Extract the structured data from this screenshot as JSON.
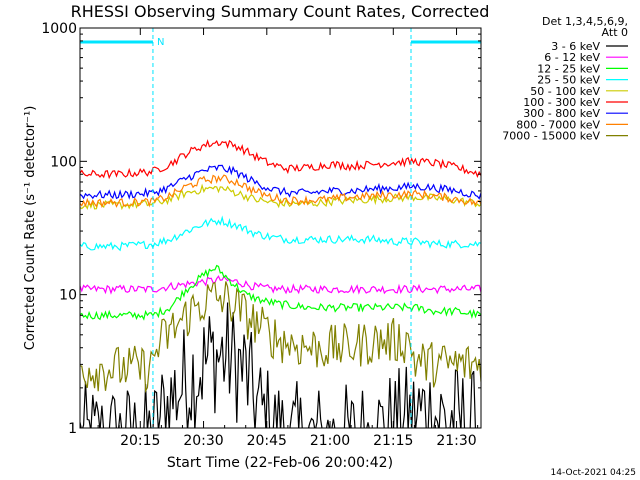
{
  "chart_data": {
    "type": "line",
    "title": "RHESSI Observing Summary Count Rates, Corrected",
    "xlabel": "Start Time (22-Feb-06 20:00:42)",
    "ylabel": "Corrected Count Rate (s⁻¹ detector⁻¹)",
    "y_scale": "log",
    "xlim_minutes_after_20_00": [
      0.7,
      95.8
    ],
    "ylim": [
      1,
      1000
    ],
    "x_ticks": [
      "20:15",
      "20:30",
      "20:45",
      "21:00",
      "21:15",
      "21:30"
    ],
    "x_tick_minutes": [
      15,
      30,
      45,
      60,
      75,
      90
    ],
    "y_ticks": [
      "1",
      "10",
      "100",
      "1000"
    ],
    "y_tick_values": [
      1,
      10,
      100,
      1000
    ],
    "legend_header": [
      "Det 1,3,4,5,6,9,",
      "Att 0"
    ],
    "legend_position": "top-right, outside plot",
    "annotation": "N",
    "timestamp": "14-Oct-2021 04:25",
    "night_intervals": [
      [
        0.7,
        18.0
      ],
      [
        79.2,
        95.8
      ]
    ],
    "series": [
      {
        "name": "3 - 6 keV",
        "color": "#000000",
        "x": [
          0.7,
          18,
          20,
          24,
          28,
          32,
          36,
          40,
          42,
          46,
          50,
          55,
          60,
          65,
          70,
          75,
          79,
          82,
          86,
          90,
          94,
          95.8
        ],
        "y": [
          0.8,
          0.8,
          1.2,
          2.0,
          2.6,
          3.5,
          3.4,
          2.6,
          1.6,
          1.0,
          0.8,
          0.8,
          0.8,
          0.8,
          0.9,
          1.0,
          1.1,
          1.3,
          1.2,
          1.1,
          1.0,
          0.9
        ]
      },
      {
        "name": "6 - 12 keV",
        "color": "#ff00ff",
        "x": [
          0.7,
          10,
          18,
          22,
          26,
          30,
          34,
          38,
          42,
          46,
          50,
          55,
          60,
          65,
          70,
          75,
          80,
          85,
          90,
          95.8
        ],
        "y": [
          11,
          11,
          11,
          11.5,
          12,
          12.5,
          13,
          12.5,
          11.5,
          11,
          11,
          11,
          11,
          11,
          11,
          11,
          11,
          11,
          11,
          11
        ]
      },
      {
        "name": "12 - 25 keV",
        "color": "#00ff00",
        "x": [
          0.7,
          10,
          18,
          22,
          26,
          30,
          33,
          36,
          40,
          44,
          48,
          55,
          60,
          65,
          70,
          75,
          80,
          85,
          90,
          95.8
        ],
        "y": [
          7,
          7,
          7,
          8,
          11,
          14,
          16,
          13,
          10,
          9,
          8.5,
          8,
          8,
          8,
          8,
          8,
          8,
          7.5,
          7.5,
          7
        ]
      },
      {
        "name": "25 - 50 keV",
        "color": "#00ffff",
        "x": [
          0.7,
          10,
          18,
          22,
          26,
          30,
          34,
          38,
          42,
          46,
          50,
          55,
          60,
          65,
          70,
          75,
          80,
          85,
          90,
          95.8
        ],
        "y": [
          23,
          23,
          24,
          26,
          30,
          34,
          36,
          33,
          29,
          27,
          26,
          26,
          26,
          26,
          26,
          25,
          25,
          24,
          24,
          24
        ]
      },
      {
        "name": "50 - 100 keV",
        "color": "#cccc00",
        "x": [
          0.7,
          10,
          18,
          22,
          26,
          30,
          34,
          38,
          42,
          46,
          50,
          55,
          60,
          65,
          70,
          75,
          80,
          85,
          90,
          95.8
        ],
        "y": [
          47,
          47,
          48,
          52,
          58,
          62,
          63,
          58,
          52,
          49,
          48,
          48,
          50,
          51,
          52,
          53,
          54,
          53,
          51,
          48
        ]
      },
      {
        "name": "100 - 300 keV",
        "color": "#ff0000",
        "x": [
          0.7,
          10,
          18,
          22,
          26,
          30,
          34,
          38,
          42,
          46,
          50,
          55,
          60,
          65,
          70,
          75,
          80,
          85,
          90,
          95.8
        ],
        "y": [
          80,
          80,
          84,
          95,
          115,
          132,
          140,
          130,
          110,
          95,
          88,
          90,
          95,
          92,
          95,
          98,
          100,
          97,
          90,
          80
        ]
      },
      {
        "name": "300 - 800 keV",
        "color": "#0000ff",
        "x": [
          0.7,
          10,
          18,
          22,
          26,
          30,
          34,
          38,
          42,
          46,
          50,
          55,
          60,
          65,
          70,
          75,
          80,
          85,
          90,
          95.8
        ],
        "y": [
          56,
          56,
          58,
          64,
          75,
          85,
          90,
          82,
          70,
          62,
          58,
          58,
          60,
          60,
          62,
          63,
          65,
          63,
          60,
          55
        ]
      },
      {
        "name": "800 - 7000 keV",
        "color": "#ff8000",
        "x": [
          0.7,
          10,
          18,
          22,
          26,
          30,
          34,
          38,
          42,
          46,
          50,
          55,
          60,
          65,
          70,
          75,
          80,
          85,
          90,
          95.8
        ],
        "y": [
          49,
          49,
          50,
          55,
          65,
          72,
          75,
          70,
          60,
          54,
          51,
          51,
          52,
          54,
          55,
          56,
          57,
          55,
          52,
          48
        ]
      },
      {
        "name": "7000 - 15000 keV",
        "color": "#808000",
        "x": [
          0.7,
          10,
          17.9,
          18,
          20,
          24,
          28,
          32,
          36,
          40,
          44,
          48,
          52,
          56,
          60,
          65,
          70,
          75,
          79,
          80,
          85,
          90,
          95.8
        ],
        "y": [
          2.8,
          2.8,
          2.8,
          3.4,
          4.5,
          6.0,
          8.0,
          9.5,
          9.0,
          7.0,
          5.5,
          4.6,
          4.2,
          4.0,
          4.0,
          4.1,
          4.4,
          4.5,
          4.5,
          3.2,
          3.0,
          3.0,
          3.0
        ]
      }
    ]
  }
}
